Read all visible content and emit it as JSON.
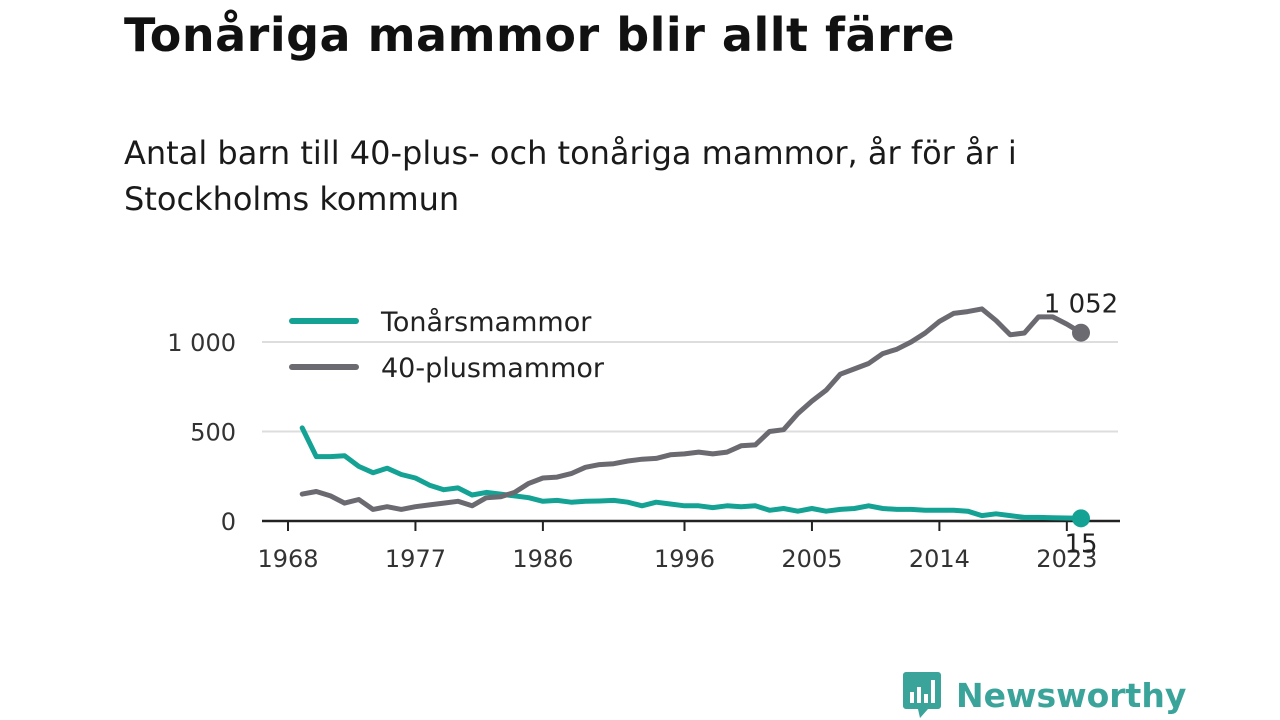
{
  "header": {
    "title": "Tonåriga mammor blir allt färre",
    "subtitle": "Antal barn till 40-plus- och tonåriga mammor, år för år i Stockholms kommun"
  },
  "branding": {
    "logo_text": "Newsworthy",
    "logo_color": "#3aa39a"
  },
  "chart_data": {
    "type": "line",
    "title": "Tonåriga mammor blir allt färre",
    "subtitle": "Antal barn till 40-plus- och tonåriga mammor, år för år i Stockholms kommun",
    "xlabel": "",
    "ylabel": "",
    "xlim": [
      1968,
      2025
    ],
    "ylim": [
      0,
      1200
    ],
    "x_ticks": [
      1968,
      1977,
      1986,
      1996,
      2005,
      2014,
      2023
    ],
    "y_ticks": [
      0,
      500,
      1000
    ],
    "y_tick_labels": [
      "0",
      "500",
      "1 000"
    ],
    "grid": "horizontal",
    "legend": "top-left",
    "x": [
      1969,
      1970,
      1971,
      1972,
      1973,
      1974,
      1975,
      1976,
      1977,
      1978,
      1979,
      1980,
      1981,
      1982,
      1983,
      1984,
      1985,
      1986,
      1987,
      1988,
      1989,
      1990,
      1991,
      1992,
      1993,
      1994,
      1995,
      1996,
      1997,
      1998,
      1999,
      2000,
      2001,
      2002,
      2003,
      2004,
      2005,
      2006,
      2007,
      2008,
      2009,
      2010,
      2011,
      2012,
      2013,
      2014,
      2015,
      2016,
      2017,
      2018,
      2019,
      2020,
      2021,
      2022,
      2023,
      2024
    ],
    "series": [
      {
        "name": "Tonårsmammor",
        "color": "#14a294",
        "values": [
          520,
          360,
          360,
          365,
          305,
          270,
          295,
          260,
          240,
          200,
          175,
          185,
          145,
          160,
          150,
          140,
          130,
          110,
          115,
          105,
          110,
          112,
          115,
          105,
          85,
          105,
          95,
          85,
          85,
          75,
          85,
          80,
          85,
          60,
          70,
          55,
          70,
          55,
          65,
          70,
          85,
          70,
          65,
          65,
          60,
          60,
          60,
          55,
          30,
          40,
          30,
          20,
          20,
          18,
          17,
          15
        ],
        "end_label": "15"
      },
      {
        "name": "40-plusmammor",
        "color": "#6a6a70",
        "values": [
          150,
          165,
          140,
          100,
          120,
          65,
          80,
          65,
          80,
          90,
          100,
          110,
          85,
          130,
          135,
          160,
          210,
          240,
          245,
          265,
          300,
          315,
          320,
          335,
          345,
          350,
          370,
          375,
          385,
          375,
          385,
          420,
          425,
          500,
          510,
          600,
          670,
          730,
          820,
          850,
          880,
          935,
          960,
          1000,
          1050,
          1115,
          1160,
          1170,
          1185,
          1120,
          1040,
          1050,
          1140,
          1140,
          1100,
          1052
        ],
        "end_label": "1 052"
      }
    ]
  }
}
